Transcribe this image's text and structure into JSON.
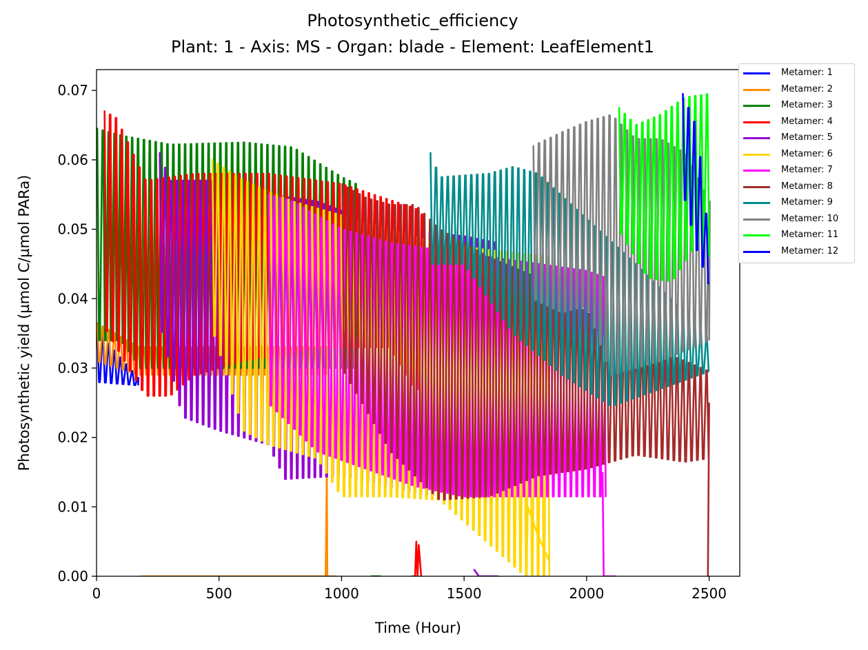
{
  "chart_data": {
    "type": "line",
    "title": "Photosynthetic_efficiency",
    "subtitle": "Plant: 1 - Axis: MS - Organ: blade - Element: LeafElement1",
    "xlabel": "Time (Hour)",
    "ylabel": "Photosynthetic yield (µmol C/µmol PARa)",
    "xlim": [
      0,
      2625
    ],
    "ylim": [
      0,
      0.073
    ],
    "xticks": [
      "0",
      "500",
      "1000",
      "1500",
      "2000",
      "2500"
    ],
    "yticks": [
      "0.00",
      "0.01",
      "0.02",
      "0.03",
      "0.04",
      "0.05",
      "0.06",
      "0.07"
    ],
    "legend_position": "outside-top-right",
    "grid": false,
    "series": [
      {
        "name": "Metamer: 1",
        "color": "#0000ff",
        "start": 0,
        "end": 170,
        "hi": [
          [
            0,
            0.0355
          ],
          [
            170,
            0.0285
          ]
        ],
        "lo": [
          [
            0,
            0.028
          ],
          [
            170,
            0.0275
          ]
        ]
      },
      {
        "name": "Metamer: 2",
        "color": "#ff8c00",
        "start": 0,
        "end": 940,
        "hi": [
          [
            0,
            0.0365
          ],
          [
            170,
            0.033
          ]
        ],
        "lo": [
          [
            0,
            0.031
          ],
          [
            170,
            0.029
          ]
        ],
        "tail": [
          [
            180,
            0.0
          ],
          [
            935,
            0.0
          ],
          [
            940,
            0.016
          ],
          [
            942,
            0.0
          ],
          [
            980,
            0.0
          ]
        ]
      },
      {
        "name": "Metamer: 3",
        "color": "#008000",
        "start": 0,
        "end": 1060,
        "hi": [
          [
            0,
            0.0645
          ],
          [
            100,
            0.0635
          ],
          [
            300,
            0.0622
          ],
          [
            600,
            0.0625
          ],
          [
            800,
            0.0618
          ],
          [
            1000,
            0.0575
          ],
          [
            1060,
            0.0565
          ]
        ],
        "lo": [
          [
            0,
            0.034
          ],
          [
            100,
            0.034
          ],
          [
            180,
            0.03
          ]
        ],
        "tail": [
          [
            1120,
            0.0
          ],
          [
            1160,
            0.0
          ]
        ]
      },
      {
        "name": "Metamer: 4",
        "color": "#ff0000",
        "start": 30,
        "end": 1330,
        "hi": [
          [
            30,
            0.067
          ],
          [
            80,
            0.066
          ],
          [
            200,
            0.057
          ],
          [
            400,
            0.058
          ],
          [
            700,
            0.058
          ],
          [
            1000,
            0.0565
          ],
          [
            1300,
            0.053
          ],
          [
            1330,
            0.052
          ]
        ],
        "lo": [
          [
            30,
            0.036
          ],
          [
            200,
            0.026
          ],
          [
            300,
            0.026
          ],
          [
            400,
            0.029
          ],
          [
            600,
            0.031
          ],
          [
            900,
            0.033
          ],
          [
            1200,
            0.033
          ],
          [
            1300,
            0.027
          ]
        ],
        "tail": [
          [
            1285,
            0.0
          ],
          [
            1300,
            0.0
          ],
          [
            1305,
            0.005
          ],
          [
            1310,
            0.0
          ],
          [
            1315,
            0.0045
          ],
          [
            1325,
            0.0
          ]
        ]
      },
      {
        "name": "Metamer: 5",
        "color": "#9400d3",
        "start": 255,
        "end": 1640,
        "hi": [
          [
            255,
            0.061
          ],
          [
            300,
            0.057
          ],
          [
            500,
            0.057
          ],
          [
            700,
            0.055
          ],
          [
            900,
            0.054
          ],
          [
            1200,
            0.05
          ],
          [
            1500,
            0.049
          ],
          [
            1640,
            0.048
          ]
        ],
        "lo": [
          [
            255,
            0.037
          ],
          [
            350,
            0.023
          ],
          [
            500,
            0.021
          ],
          [
            700,
            0.019
          ],
          [
            770,
            0.014
          ],
          [
            1000,
            0.0145
          ],
          [
            1300,
            0.012
          ],
          [
            1500,
            0.011
          ],
          [
            1640,
            0.01
          ]
        ],
        "tail": [
          [
            1540,
            0.001
          ],
          [
            1560,
            0.0
          ],
          [
            1600,
            0.0
          ],
          [
            1640,
            0.0
          ]
        ]
      },
      {
        "name": "Metamer: 6",
        "color": "#ffd700",
        "start": 470,
        "end": 1850,
        "hi": [
          [
            470,
            0.06
          ],
          [
            600,
            0.057
          ],
          [
            800,
            0.054
          ],
          [
            1000,
            0.052
          ],
          [
            1200,
            0.05
          ],
          [
            1400,
            0.048
          ],
          [
            1600,
            0.047
          ],
          [
            1850,
            0.046
          ]
        ],
        "lo": [
          [
            470,
            0.036
          ],
          [
            600,
            0.021
          ],
          [
            700,
            0.019
          ],
          [
            900,
            0.017
          ],
          [
            1000,
            0.0115
          ],
          [
            1200,
            0.0115
          ],
          [
            1400,
            0.011
          ],
          [
            1750,
            0.0
          ]
        ],
        "tail": [
          [
            1755,
            0.0
          ],
          [
            1760,
            0.01
          ],
          [
            1800,
            0.006
          ],
          [
            1850,
            0.002
          ]
        ]
      },
      {
        "name": "Metamer: 7",
        "color": "#ff00ff",
        "start": 700,
        "end": 2080,
        "hi": [
          [
            700,
            0.055
          ],
          [
            800,
            0.054
          ],
          [
            1000,
            0.05
          ],
          [
            1200,
            0.048
          ],
          [
            1400,
            0.047
          ],
          [
            1600,
            0.046
          ],
          [
            2000,
            0.044
          ],
          [
            2080,
            0.043
          ]
        ],
        "lo": [
          [
            700,
            0.025
          ],
          [
            900,
            0.018
          ],
          [
            1100,
            0.0155
          ],
          [
            1300,
            0.013
          ],
          [
            1500,
            0.0115
          ],
          [
            1600,
            0.0115
          ]
        ],
        "tail": [
          [
            2065,
            0.015
          ],
          [
            2070,
            0.0
          ],
          [
            2120,
            0.0
          ]
        ]
      },
      {
        "name": "Metamer: 8",
        "color": "#a52a2a",
        "start": 1000,
        "end": 2500,
        "hi": [
          [
            1000,
            0.0565
          ],
          [
            1100,
            0.0545
          ],
          [
            1200,
            0.0535
          ],
          [
            1300,
            0.0535
          ],
          [
            1400,
            0.05
          ],
          [
            1600,
            0.046
          ],
          [
            1800,
            0.043
          ],
          [
            2000,
            0.038
          ],
          [
            2200,
            0.034
          ],
          [
            2400,
            0.031
          ],
          [
            2500,
            0.0295
          ]
        ],
        "lo": [
          [
            1000,
            0.03
          ],
          [
            1200,
            0.018
          ],
          [
            1400,
            0.011
          ],
          [
            1600,
            0.0115
          ],
          [
            1800,
            0.0145
          ],
          [
            2000,
            0.0155
          ],
          [
            2200,
            0.0175
          ],
          [
            2400,
            0.0165
          ],
          [
            2500,
            0.017
          ]
        ],
        "tail": [
          [
            2495,
            0.0
          ],
          [
            2500,
            0.025
          ]
        ]
      },
      {
        "name": "Metamer: 9",
        "color": "#008b8b",
        "start": 1360,
        "end": 2500,
        "hi": [
          [
            1360,
            0.061
          ],
          [
            1400,
            0.0575
          ],
          [
            1600,
            0.058
          ],
          [
            1700,
            0.059
          ],
          [
            1800,
            0.058
          ],
          [
            2000,
            0.0515
          ],
          [
            2200,
            0.045
          ],
          [
            2400,
            0.038
          ],
          [
            2500,
            0.034
          ]
        ],
        "lo": [
          [
            1360,
            0.045
          ],
          [
            1500,
            0.045
          ],
          [
            1700,
            0.035
          ],
          [
            1900,
            0.029
          ],
          [
            2100,
            0.0245
          ],
          [
            2300,
            0.027
          ],
          [
            2500,
            0.0295
          ]
        ]
      },
      {
        "name": "Metamer: 10",
        "color": "#808080",
        "start": 1780,
        "end": 2500,
        "hi": [
          [
            1780,
            0.062
          ],
          [
            1900,
            0.064
          ],
          [
            2000,
            0.0655
          ],
          [
            2100,
            0.0665
          ],
          [
            2200,
            0.063
          ],
          [
            2300,
            0.063
          ],
          [
            2400,
            0.061
          ],
          [
            2500,
            0.054
          ]
        ],
        "lo": [
          [
            1780,
            0.04
          ],
          [
            1900,
            0.038
          ],
          [
            2000,
            0.039
          ],
          [
            2100,
            0.029
          ],
          [
            2300,
            0.031
          ],
          [
            2500,
            0.034
          ]
        ]
      },
      {
        "name": "Metamer: 11",
        "color": "#00ff00",
        "start": 2130,
        "end": 2500,
        "hi": [
          [
            2130,
            0.0675
          ],
          [
            2200,
            0.065
          ],
          [
            2300,
            0.0665
          ],
          [
            2400,
            0.069
          ],
          [
            2500,
            0.0695
          ]
        ],
        "lo": [
          [
            2130,
            0.05
          ],
          [
            2250,
            0.043
          ],
          [
            2350,
            0.0425
          ],
          [
            2450,
            0.048
          ],
          [
            2500,
            0.046
          ]
        ]
      },
      {
        "name": "Metamer: 12",
        "color": "#0000ff",
        "start": 2390,
        "end": 2500,
        "hi": [
          [
            2390,
            0.0695
          ],
          [
            2450,
            0.0645
          ],
          [
            2500,
            0.0475
          ]
        ],
        "lo": [
          [
            2390,
            0.056
          ],
          [
            2450,
            0.047
          ],
          [
            2500,
            0.042
          ]
        ]
      }
    ]
  }
}
